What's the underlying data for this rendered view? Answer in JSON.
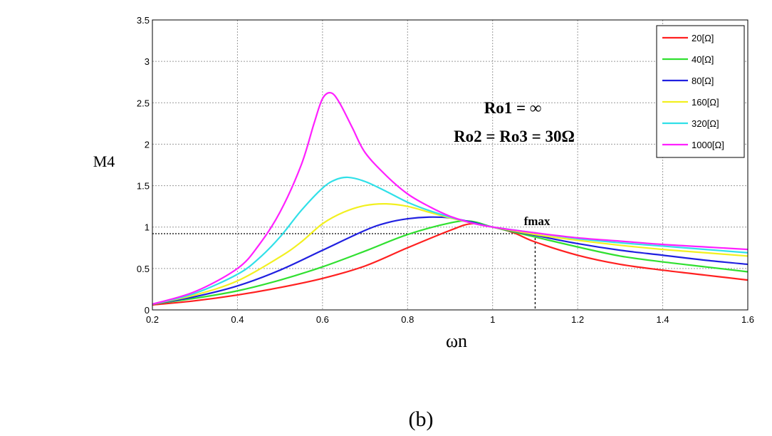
{
  "chart_data": {
    "type": "line",
    "xlabel": "ωn",
    "ylabel": "M4",
    "xlim": [
      0.2,
      1.6
    ],
    "ylim": [
      0,
      3.5
    ],
    "x_ticks": [
      "0.2",
      "0.4",
      "0.6",
      "0.8",
      "1",
      "1.2",
      "1.4",
      "1.6"
    ],
    "y_ticks": [
      "0",
      "0.5",
      "1",
      "1.5",
      "2",
      "2.5",
      "3",
      "3.5"
    ],
    "grid": true,
    "legend_position": "top-right",
    "annotations": {
      "line1": "Ro1 = ∞",
      "line2": "Ro2 = Ro3 = 30Ω",
      "fmax": "fmax"
    },
    "reference": {
      "hline_y": 0.92,
      "vline_x": 1.1
    },
    "series": [
      {
        "name": "20[Ω]",
        "color": "#ff2020",
        "x": [
          0.2,
          0.3,
          0.4,
          0.5,
          0.6,
          0.7,
          0.8,
          0.9,
          0.95,
          1.0,
          1.05,
          1.1,
          1.2,
          1.3,
          1.4,
          1.5,
          1.6
        ],
        "y": [
          0.06,
          0.11,
          0.18,
          0.27,
          0.38,
          0.53,
          0.75,
          0.96,
          1.04,
          1.0,
          0.93,
          0.82,
          0.66,
          0.55,
          0.48,
          0.42,
          0.36
        ]
      },
      {
        "name": "40[Ω]",
        "color": "#30e030",
        "x": [
          0.2,
          0.3,
          0.4,
          0.5,
          0.6,
          0.7,
          0.8,
          0.9,
          0.95,
          1.0,
          1.1,
          1.2,
          1.3,
          1.4,
          1.5,
          1.6
        ],
        "y": [
          0.07,
          0.14,
          0.23,
          0.36,
          0.52,
          0.71,
          0.91,
          1.05,
          1.07,
          1.0,
          0.88,
          0.76,
          0.65,
          0.58,
          0.52,
          0.46
        ]
      },
      {
        "name": "80[Ω]",
        "color": "#2020e0",
        "x": [
          0.2,
          0.3,
          0.4,
          0.5,
          0.6,
          0.7,
          0.75,
          0.8,
          0.85,
          0.9,
          0.95,
          1.0,
          1.1,
          1.2,
          1.3,
          1.4,
          1.5,
          1.6
        ],
        "y": [
          0.07,
          0.16,
          0.29,
          0.48,
          0.72,
          0.96,
          1.05,
          1.1,
          1.12,
          1.11,
          1.06,
          1.0,
          0.9,
          0.8,
          0.72,
          0.66,
          0.6,
          0.55
        ]
      },
      {
        "name": "160[Ω]",
        "color": "#f2f020",
        "x": [
          0.2,
          0.3,
          0.4,
          0.5,
          0.55,
          0.6,
          0.65,
          0.7,
          0.75,
          0.8,
          0.85,
          0.9,
          0.95,
          1.0,
          1.1,
          1.2,
          1.3,
          1.4,
          1.5,
          1.6
        ],
        "y": [
          0.07,
          0.18,
          0.35,
          0.64,
          0.82,
          1.04,
          1.18,
          1.26,
          1.28,
          1.25,
          1.18,
          1.11,
          1.05,
          1.0,
          0.91,
          0.84,
          0.78,
          0.73,
          0.69,
          0.65
        ]
      },
      {
        "name": "320[Ω]",
        "color": "#30e0e8",
        "x": [
          0.2,
          0.3,
          0.4,
          0.45,
          0.5,
          0.55,
          0.6,
          0.63,
          0.66,
          0.7,
          0.75,
          0.8,
          0.85,
          0.9,
          0.95,
          1.0,
          1.1,
          1.2,
          1.3,
          1.4,
          1.5,
          1.6
        ],
        "y": [
          0.07,
          0.2,
          0.43,
          0.62,
          0.88,
          1.2,
          1.47,
          1.57,
          1.6,
          1.55,
          1.43,
          1.3,
          1.2,
          1.12,
          1.05,
          1.0,
          0.93,
          0.86,
          0.81,
          0.77,
          0.73,
          0.69
        ]
      },
      {
        "name": "1000[Ω]",
        "color": "#ff20ff",
        "x": [
          0.2,
          0.3,
          0.4,
          0.45,
          0.5,
          0.55,
          0.58,
          0.6,
          0.62,
          0.64,
          0.67,
          0.7,
          0.75,
          0.8,
          0.85,
          0.9,
          0.95,
          1.0,
          1.1,
          1.2,
          1.3,
          1.4,
          1.5,
          1.6
        ],
        "y": [
          0.07,
          0.22,
          0.5,
          0.78,
          1.18,
          1.75,
          2.25,
          2.55,
          2.62,
          2.5,
          2.2,
          1.9,
          1.62,
          1.4,
          1.25,
          1.13,
          1.05,
          1.0,
          0.93,
          0.87,
          0.83,
          0.79,
          0.76,
          0.73
        ]
      }
    ]
  },
  "caption": "(b)"
}
